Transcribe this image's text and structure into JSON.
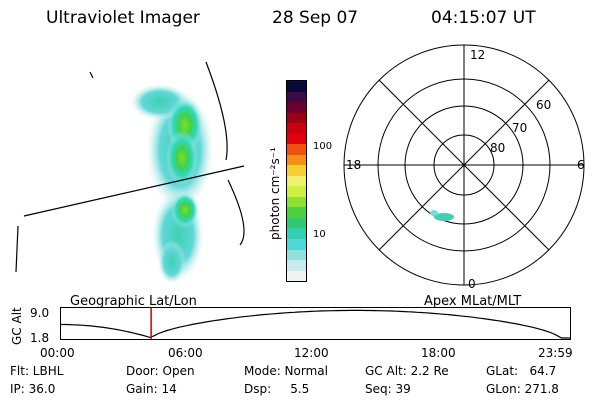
{
  "header": {
    "instrument": "Ultraviolet Imager",
    "date": "28 Sep 07",
    "time": "04:15:07 UT"
  },
  "colorbar": {
    "unit_label": "photon cm⁻²s⁻¹",
    "ticks": [
      "100",
      "10"
    ],
    "colors": [
      "#0a0a3a",
      "#3a0a4a",
      "#6a0030",
      "#9a0018",
      "#c80010",
      "#e00010",
      "#f05010",
      "#f49018",
      "#f4d030",
      "#f0f070",
      "#d0f040",
      "#90e030",
      "#50d040",
      "#30c870",
      "#30d0b0",
      "#50d8d8",
      "#90e0e0",
      "#c8ecec",
      "#f0f4f4"
    ]
  },
  "polar_plot": {
    "mlt_labels": [
      "12",
      "18",
      "6",
      "0"
    ],
    "mlat_labels": [
      "60",
      "70",
      "80"
    ]
  },
  "track": {
    "left_label": "Geographic Lat/Lon",
    "right_label": "Apex MLat/MLT",
    "y_axis_title": "GC Alt",
    "y_ticks": [
      "9.0",
      "1.8"
    ],
    "x_ticks": [
      "00:00",
      "06:00",
      "12:00",
      "18:00",
      "23:59"
    ],
    "marker_time_hours": 4.25
  },
  "readouts": {
    "flt": "Flt: LBHL",
    "ip": "IP: 36.0",
    "door": "Door: Open",
    "gain": "Gain: 14",
    "mode": "Mode: Normal",
    "dsp": "Dsp:     5.5",
    "gc_alt": "GC Alt: 2.2 Re",
    "seq": "Seq: 39",
    "glat": "GLat:   64.7",
    "glon": "GLon: 271.8"
  }
}
